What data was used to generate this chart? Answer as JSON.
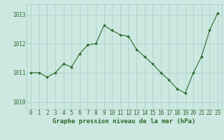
{
  "x": [
    0,
    1,
    2,
    3,
    4,
    5,
    6,
    7,
    8,
    9,
    10,
    11,
    12,
    13,
    14,
    15,
    16,
    17,
    18,
    19,
    20,
    21,
    22,
    23
  ],
  "y": [
    1011.0,
    1011.0,
    1010.85,
    1011.0,
    1011.3,
    1011.2,
    1011.65,
    1011.95,
    1012.0,
    1012.62,
    1012.45,
    1012.3,
    1012.25,
    1011.8,
    1011.55,
    1011.3,
    1011.0,
    1010.75,
    1010.45,
    1010.3,
    1011.0,
    1011.55,
    1012.45,
    1013.05
  ],
  "line_color": "#2d6a2d",
  "marker": "D",
  "markersize": 1.8,
  "linewidth": 0.8,
  "background_color": "#cce8e0",
  "grid_color": "#a8ccca",
  "yticks": [
    1010,
    1011,
    1012,
    1013
  ],
  "xticks": [
    0,
    1,
    2,
    3,
    4,
    5,
    6,
    7,
    8,
    9,
    10,
    11,
    12,
    13,
    14,
    15,
    16,
    17,
    18,
    19,
    20,
    21,
    22,
    23
  ],
  "xlabel": "Graphe pression niveau de la mer (hPa)",
  "xlabel_fontsize": 6.5,
  "tick_fontsize": 5.5,
  "ylim": [
    1009.75,
    1013.35
  ],
  "xlim": [
    -0.5,
    23.5
  ]
}
